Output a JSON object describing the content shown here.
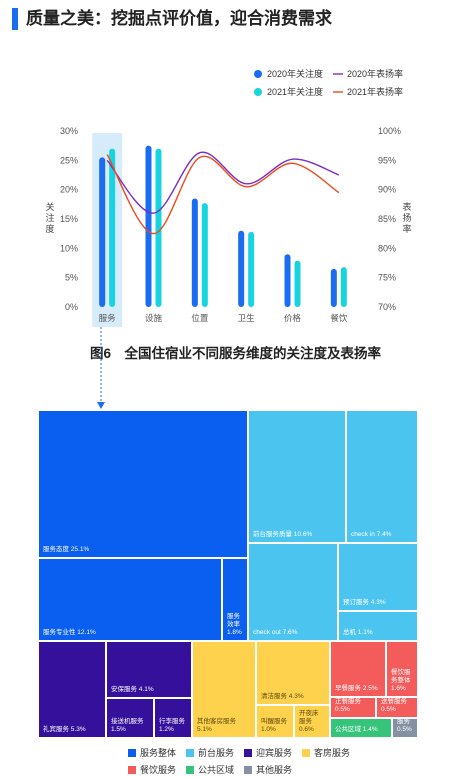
{
  "header": {
    "title": "质量之美：挖掘点评价值，迎合消费需求",
    "accent": "#1a6cf0"
  },
  "chart_data": [
    {
      "type": "bar",
      "title": "图6　全国住宿业不同服务维度的关注度及表扬率",
      "categories": [
        "服务",
        "设施",
        "位置",
        "卫生",
        "价格",
        "餐饮"
      ],
      "series": [
        {
          "name": "2020年关注度",
          "kind": "bar",
          "axis": "left",
          "color": "#1a6cf0",
          "values": [
            25.5,
            27.5,
            18.5,
            13.0,
            9.0,
            6.5
          ]
        },
        {
          "name": "2021年关注度",
          "kind": "bar",
          "axis": "left",
          "color": "#18d3e0",
          "values": [
            27.0,
            27.0,
            17.7,
            12.8,
            7.9,
            6.8
          ]
        },
        {
          "name": "2020年表扬率",
          "kind": "line",
          "axis": "right",
          "color": "#7a2fc4",
          "values": [
            95.0,
            86.0,
            96.3,
            91.0,
            95.2,
            92.5
          ]
        },
        {
          "name": "2021年表扬率",
          "kind": "line",
          "axis": "right",
          "color": "#f04a1a",
          "values": [
            96.0,
            82.5,
            95.5,
            90.5,
            94.5,
            89.5
          ]
        }
      ],
      "ylabel": "关注度",
      "y2label": "表扬率",
      "ylim": [
        0,
        30
      ],
      "y2lim": [
        70,
        100
      ],
      "yticks": [
        "0%",
        "5%",
        "10%",
        "15%",
        "20%",
        "25%",
        "30%"
      ],
      "y2ticks": [
        "70%",
        "75%",
        "80%",
        "85%",
        "90%",
        "95%",
        "100%"
      ],
      "highlight_category": "服务",
      "legend_position": "top-right"
    },
    {
      "type": "treemap",
      "categories": [
        {
          "name": "服务整体",
          "color": "#0a5ff0"
        },
        {
          "name": "前台服务",
          "color": "#4bc4ef"
        },
        {
          "name": "迎宾服务",
          "color": "#35109a"
        },
        {
          "name": "客房服务",
          "color": "#ffd24d"
        },
        {
          "name": "餐饮服务",
          "color": "#f45b5b"
        },
        {
          "name": "公共区域",
          "color": "#36c37a"
        },
        {
          "name": "其他服务",
          "color": "#8591a3"
        }
      ],
      "items": [
        {
          "label": "服务态度 25.1%",
          "group": "服务整体"
        },
        {
          "label": "服务专业性 12.1%",
          "group": "服务整体"
        },
        {
          "label": "服务\n效率\n1.8%",
          "group": "服务整体"
        },
        {
          "label": "前台服务质量 10.6%",
          "group": "前台服务"
        },
        {
          "label": "check in 7.4%",
          "group": "前台服务"
        },
        {
          "label": "check out 7.6%",
          "group": "前台服务"
        },
        {
          "label": "预订服务 4.3%",
          "group": "前台服务"
        },
        {
          "label": "总机 1.1%",
          "group": "前台服务"
        },
        {
          "label": "礼宾服务 5.3%",
          "group": "迎宾服务"
        },
        {
          "label": "安保服务 4.1%",
          "group": "迎宾服务"
        },
        {
          "label": "接送机服务\n1.5%",
          "group": "迎宾服务"
        },
        {
          "label": "行李服务\n1.2%",
          "group": "迎宾服务"
        },
        {
          "label": "其他客房服务\n5.1%",
          "group": "客房服务"
        },
        {
          "label": "清洁服务 4.3%",
          "group": "客房服务"
        },
        {
          "label": "叫醒服务\n1.0%",
          "group": "客房服务"
        },
        {
          "label": "开夜床\n服务\n0.6%",
          "group": "客房服务"
        },
        {
          "label": "早餐服务 2.5%",
          "group": "餐饮服务"
        },
        {
          "label": "餐饮服\n务整体\n1.6%",
          "group": "餐饮服务"
        },
        {
          "label": "正餐服务 0.5%",
          "group": "餐饮服务"
        },
        {
          "label": "送餐服务 0.5%",
          "group": "餐饮服务"
        },
        {
          "label": "公共区域 1.4%",
          "group": "公共区域"
        },
        {
          "label": "其他\n服务\n0.5%",
          "group": "其他服务"
        }
      ],
      "legend_position": "bottom"
    }
  ]
}
